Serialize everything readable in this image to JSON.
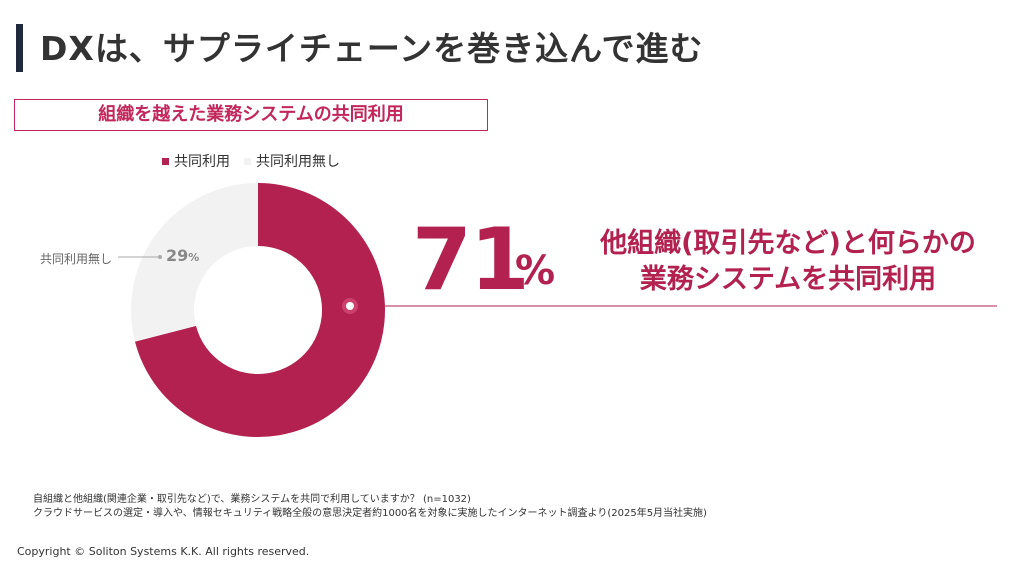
{
  "page_title": "DXは、サプライチェーンを巻き込んで進む",
  "subtitle": "組織を越えた業務システムの共同利用",
  "colors": {
    "accent": "#b2214f",
    "other": "#f2f2f2",
    "title_bar": "#1f2a3c"
  },
  "legend": [
    {
      "label": "共同利用",
      "color": "#b2214f"
    },
    {
      "label": "共同利用無し",
      "color": "#f2f2f2"
    }
  ],
  "highlight": {
    "value": "71",
    "unit": "%",
    "text_line1": "他組織(取引先など)と何らかの",
    "text_line2": "業務システムを共同利用"
  },
  "side_label": {
    "label": "共同利用無し",
    "value": "29",
    "unit": "%"
  },
  "notes": [
    "自組織と他組織(関連企業・取引先など)で、業務システムを共同で利用していますか？ (n=1032)",
    "クラウドサービスの選定・導入や、情報セキュリティ戦略全般の意思決定者約1000名を対象に実施したインターネット調査より(2025年5月当社実施)"
  ],
  "copyright": "Copyright © Soliton Systems K.K. All rights reserved.",
  "chart_data": {
    "type": "pie",
    "donut": true,
    "slices": [
      {
        "label": "共同利用",
        "value": 71,
        "color": "#b2214f"
      },
      {
        "label": "共同利用無し",
        "value": 29,
        "color": "#f2f2f2"
      }
    ],
    "legend_position": "top-left"
  }
}
